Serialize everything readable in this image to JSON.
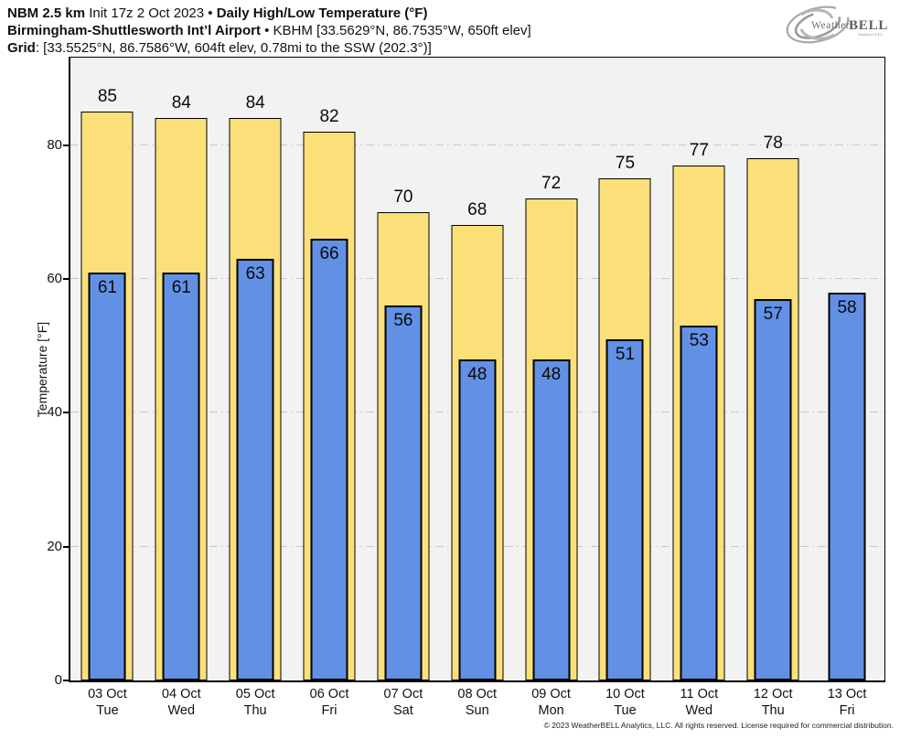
{
  "header": {
    "title_model": "NBM 2.5 km",
    "title_init": " Init 17z 2 Oct 2023 • ",
    "title_product": "Daily High/Low Temperature (°F)",
    "station_name": "Birmingham-Shuttlesworth Int’l Airport",
    "station_meta": " • KBHM [33.5629°N, 86.7535°W, 650ft elev]",
    "grid_label": "Grid",
    "grid_meta": ": [33.5525°N, 86.7586°W, 604ft elev, 0.78mi to the SSW (202.3°)]"
  },
  "logo": {
    "brand_weather": "Weather",
    "brand_bell": "BELL",
    "brand_sub": "Analytics LLC"
  },
  "footer": {
    "copyright": "© 2023 WeatherBELL Analytics, LLC. All rights reserved. License required for commercial distribution."
  },
  "chart_data": {
    "type": "bar",
    "title": "NBM 2.5 km Daily High/Low Temperature (°F) — KBHM Birmingham-Shuttlesworth Int'l Airport",
    "xlabel": "",
    "ylabel": "Temperature [°F]",
    "ylim": [
      0,
      93
    ],
    "yticks": [
      0,
      20,
      40,
      60,
      80
    ],
    "grid": "horizontal dash-dot lines at yticks",
    "legend_position": "none",
    "categories": [
      {
        "date": "03 Oct",
        "day": "Tue"
      },
      {
        "date": "04 Oct",
        "day": "Wed"
      },
      {
        "date": "05 Oct",
        "day": "Thu"
      },
      {
        "date": "06 Oct",
        "day": "Fri"
      },
      {
        "date": "07 Oct",
        "day": "Sat"
      },
      {
        "date": "08 Oct",
        "day": "Sun"
      },
      {
        "date": "09 Oct",
        "day": "Mon"
      },
      {
        "date": "10 Oct",
        "day": "Tue"
      },
      {
        "date": "11 Oct",
        "day": "Wed"
      },
      {
        "date": "12 Oct",
        "day": "Thu"
      },
      {
        "date": "13 Oct",
        "day": "Fri"
      }
    ],
    "series": [
      {
        "name": "High",
        "color": "#fbe07a",
        "values": [
          85,
          84,
          84,
          82,
          70,
          68,
          72,
          75,
          77,
          78,
          null
        ]
      },
      {
        "name": "Low",
        "color": "#6290e5",
        "values": [
          61,
          61,
          63,
          66,
          56,
          48,
          48,
          51,
          53,
          57,
          58
        ]
      }
    ],
    "colors": {
      "plot_background": "#f2f2f2",
      "page_background": "#ffffff",
      "bar_border": "#000000",
      "gridline": "#c9c9c9"
    }
  }
}
